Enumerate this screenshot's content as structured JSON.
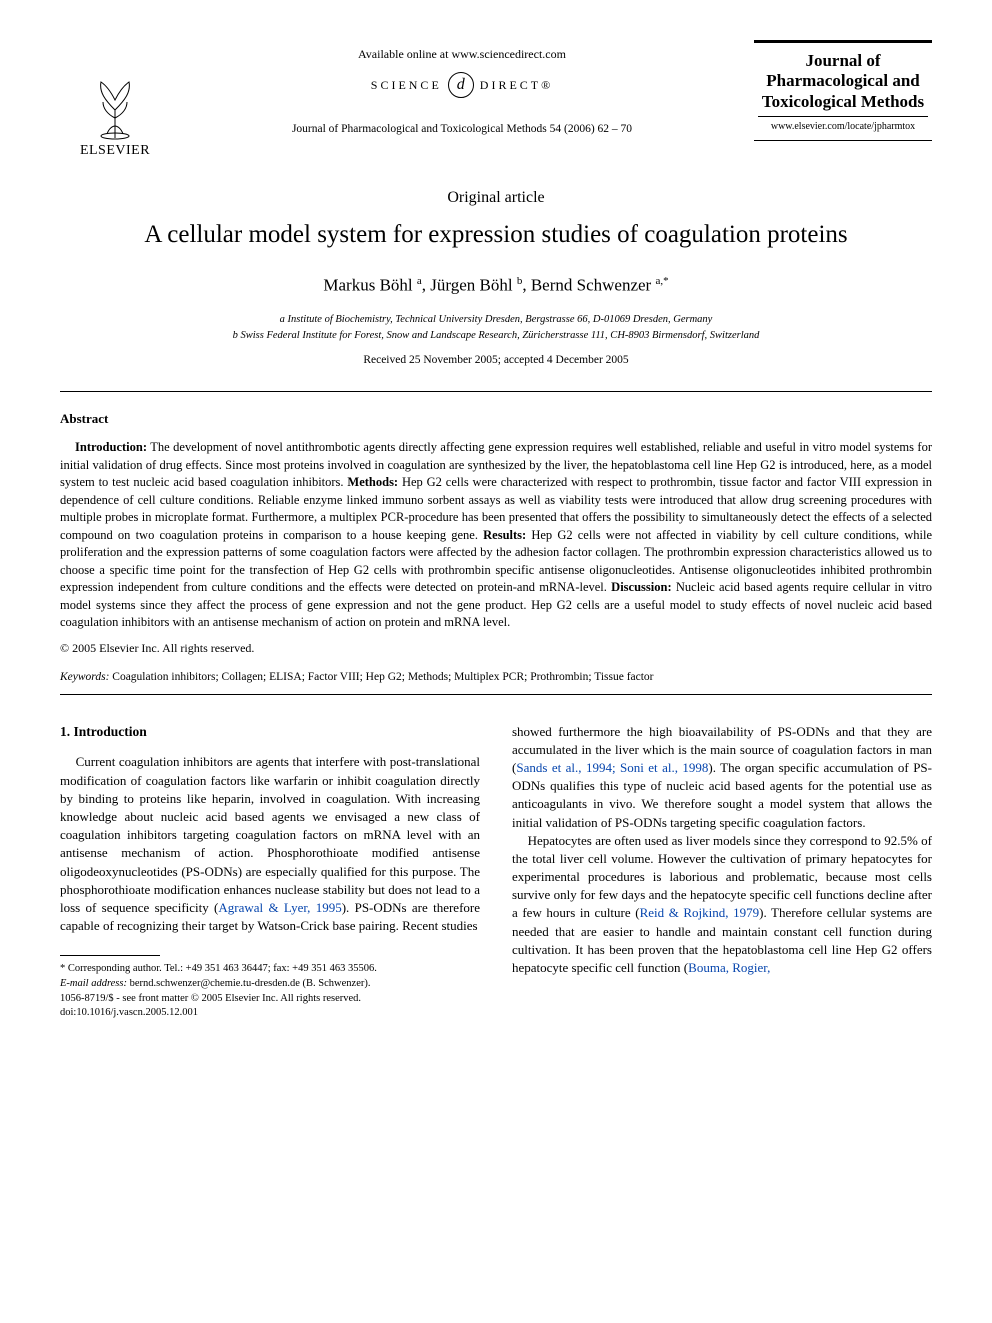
{
  "header": {
    "available_online": "Available online at www.sciencedirect.com",
    "science_direct_left": "SCIENCE",
    "science_direct_logo": "d",
    "science_direct_right": "DIRECT®",
    "journal_ref": "Journal of Pharmacological and Toxicological Methods 54 (2006) 62 – 70",
    "publisher_name": "ELSEVIER",
    "journal_box_title": "Journal of Pharmacological and Toxicological Methods",
    "journal_box_url": "www.elsevier.com/locate/jpharmtox"
  },
  "article": {
    "type": "Original article",
    "title": "A cellular model system for expression studies of coagulation proteins",
    "authors_html": "Markus Böhl <sup>a</sup>, Jürgen Böhl <sup>b</sup>, Bernd Schwenzer <sup>a,*</sup>",
    "affiliation_a": "a Institute of Biochemistry, Technical University Dresden, Bergstrasse 66, D-01069 Dresden, Germany",
    "affiliation_b": "b Swiss Federal Institute for Forest, Snow and Landscape Research, Züricherstrasse 111, CH-8903 Birmensdorf, Switzerland",
    "dates": "Received 25 November 2005; accepted 4 December 2005"
  },
  "abstract": {
    "heading": "Abstract",
    "intro_label": "Introduction:",
    "intro_text": " The development of novel antithrombotic agents directly affecting gene expression requires well established, reliable and useful in vitro model systems for initial validation of drug effects. Since most proteins involved in coagulation are synthesized by the liver, the hepatoblastoma cell line Hep G2 is introduced, here, as a model system to test nucleic acid based coagulation inhibitors. ",
    "methods_label": "Methods:",
    "methods_text": " Hep G2 cells were characterized with respect to prothrombin, tissue factor and factor VIII expression in dependence of cell culture conditions. Reliable enzyme linked immuno sorbent assays as well as viability tests were introduced that allow drug screening procedures with multiple probes in microplate format. Furthermore, a multiplex PCR-procedure has been presented that offers the possibility to simultaneously detect the effects of a selected compound on two coagulation proteins in comparison to a house keeping gene. ",
    "results_label": "Results:",
    "results_text": "  Hep G2 cells were not affected in viability by cell culture conditions, while proliferation and the expression patterns of some coagulation factors were affected by the adhesion factor collagen. The prothrombin expression characteristics allowed us to choose a specific time point for the transfection of Hep G2 cells with prothrombin specific antisense oligonucleotides. Antisense oligonucleotides inhibited prothrombin expression independent from culture conditions and the effects were detected on protein-and mRNA-level. ",
    "discussion_label": "Discussion:",
    "discussion_text": "  Nucleic acid based agents require cellular in vitro model systems since they affect the process of gene expression and not the gene product. Hep G2 cells are a useful model to study effects of novel nucleic acid based coagulation inhibitors with an antisense mechanism of action on protein and mRNA level.",
    "copyright": "© 2005 Elsevier Inc. All rights reserved."
  },
  "keywords": {
    "label": "Keywords:",
    "text": " Coagulation inhibitors; Collagen; ELISA; Factor VIII; Hep G2; Methods; Multiplex PCR; Prothrombin; Tissue factor"
  },
  "body": {
    "section1_heading": "1. Introduction",
    "col1_p1_a": "Current coagulation inhibitors are agents that interfere with post-translational modification of coagulation factors like warfarin or inhibit coagulation directly by binding to proteins like heparin, involved in coagulation. With increasing knowledge about nucleic acid based agents we envisaged a new class of coagulation inhibitors targeting coagulation factors on mRNA level with an antisense mechanism of action. Phosphorothioate modified antisense oligodeoxynucleotides (PS-ODNs) are especially qualified for this purpose. The phosphorothioate modification enhances nuclease stability but does not lead to a loss of sequence specificity (",
    "col1_link1": "Agrawal & Lyer, 1995",
    "col1_p1_b": "). PS-ODNs are therefore capable of recognizing their target by Watson-Crick base pairing. Recent studies",
    "col2_p1_a": "showed furthermore the high bioavailability of PS-ODNs and that they are accumulated in the liver which is the main source of coagulation factors in man (",
    "col2_link1": "Sands et al., 1994; Soni et al., 1998",
    "col2_p1_b": "). The organ specific accumulation of PS-ODNs qualifies this type of nucleic acid based agents for the potential use as anticoagulants in vivo. We therefore sought a model system that allows the initial validation of PS-ODNs targeting specific coagulation factors.",
    "col2_p2_a": "Hepatocytes are often used as liver models since they correspond to 92.5% of the total liver cell volume. However the cultivation of primary hepatocytes for experimental procedures is laborious and problematic, because most cells survive only for few days and the hepatocyte specific cell functions decline after a few hours in culture (",
    "col2_link2": "Reid & Rojkind, 1979",
    "col2_p2_b": "). Therefore cellular systems are needed that are easier to handle and maintain constant cell function during cultivation. It has been proven that the hepatoblastoma cell line Hep G2 offers hepatocyte specific cell function (",
    "col2_link3": "Bouma, Rogier,"
  },
  "footnote": {
    "corr": "* Corresponding author. Tel.: +49 351 463 36447; fax: +49 351 463 35506.",
    "email_label": "E-mail address:",
    "email": " bernd.schwenzer@chemie.tu-dresden.de (B. Schwenzer)."
  },
  "footer": {
    "issn": "1056-8719/$ - see front matter © 2005 Elsevier Inc. All rights reserved.",
    "doi": "doi:10.1016/j.vascn.2005.12.001"
  },
  "colors": {
    "link": "#0645ad",
    "text": "#000000",
    "background": "#ffffff"
  }
}
